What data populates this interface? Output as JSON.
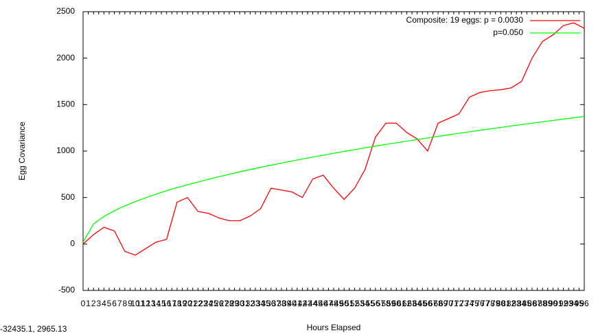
{
  "chart_data": {
    "type": "line",
    "ylabel": "Egg Covariance",
    "xlabel": "Hours Elapsed",
    "status": "-32435.1, 2965.13",
    "x": [
      0,
      2,
      4,
      6,
      8,
      10,
      12,
      14,
      16,
      18,
      20,
      22,
      24,
      26,
      28,
      30,
      32,
      34,
      36,
      38,
      40,
      42,
      44,
      46,
      48,
      50,
      52,
      54,
      56,
      58,
      60,
      62,
      64,
      66,
      68,
      70,
      72,
      74,
      76,
      78,
      80,
      82,
      84,
      86,
      88,
      90,
      92,
      94,
      96
    ],
    "series": [
      {
        "name": "Composite: 19 eggs: p = 0.0030",
        "color": "#ff0000",
        "values": [
          0,
          100,
          180,
          140,
          -80,
          -120,
          -50,
          20,
          50,
          450,
          500,
          350,
          330,
          280,
          250,
          250,
          300,
          380,
          600,
          580,
          560,
          500,
          700,
          740,
          600,
          480,
          600,
          800,
          1150,
          1300,
          1300,
          1200,
          1130,
          1000,
          1300,
          1350,
          1400,
          1580,
          1630,
          1650,
          1660,
          1680,
          1750,
          2000,
          2180,
          2250,
          2350,
          2380,
          2320
        ]
      },
      {
        "name": "p=0.050",
        "color": "#00ff00",
        "values": [
          20,
          215,
          296,
          358,
          410,
          456,
          498,
          536,
          572,
          606,
          637,
          667,
          696,
          724,
          750,
          776,
          801,
          825,
          848,
          871,
          893,
          914,
          935,
          956,
          976,
          996,
          1015,
          1034,
          1053,
          1071,
          1089,
          1107,
          1124,
          1141,
          1158,
          1175,
          1191,
          1207,
          1223,
          1239,
          1254,
          1270,
          1285,
          1300,
          1315,
          1329,
          1344,
          1358,
          1372
        ]
      }
    ],
    "xlim": [
      0,
      96
    ],
    "xticks": [
      0,
      1,
      2,
      3,
      4,
      5,
      6,
      7,
      8,
      9,
      10,
      11,
      12,
      13,
      14,
      15,
      16,
      17,
      18,
      19,
      20,
      21,
      22,
      23,
      24,
      25,
      26,
      27,
      28,
      29,
      30,
      31,
      32,
      33,
      34,
      35,
      36,
      37,
      38,
      39,
      40,
      41,
      42,
      43,
      44,
      45,
      46,
      47,
      48,
      49,
      50,
      51,
      52,
      53,
      54,
      55,
      56,
      57,
      58,
      59,
      60,
      61,
      62,
      63,
      64,
      65,
      66,
      67,
      68,
      69,
      70,
      71,
      72,
      73,
      74,
      75,
      76,
      77,
      78,
      79,
      80,
      81,
      82,
      83,
      84,
      85,
      86,
      87,
      88,
      89,
      90,
      91,
      92,
      93,
      94,
      95,
      96
    ],
    "ylim": [
      -500,
      2500
    ],
    "yticks": [
      -500,
      0,
      500,
      1000,
      1500,
      2000,
      2500
    ],
    "grid": false,
    "legend": "upper right"
  }
}
